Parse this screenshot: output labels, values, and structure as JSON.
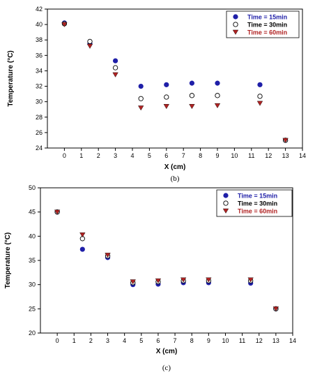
{
  "colors": {
    "s15": "#1f1fa8",
    "s30": "#000000",
    "s60": "#b02222",
    "axis": "#000000"
  },
  "chart_data": [
    {
      "type": "scatter",
      "caption": "(b)",
      "xlabel": "X (cm)",
      "ylabel": "Temperature (°C)",
      "xlim": [
        -1,
        14
      ],
      "ylim": [
        24,
        42
      ],
      "xticks": [
        0,
        1,
        2,
        3,
        4,
        5,
        6,
        7,
        8,
        9,
        10,
        11,
        12,
        13,
        14
      ],
      "yticks": [
        24,
        26,
        28,
        30,
        32,
        34,
        36,
        38,
        40,
        42
      ],
      "legend": "top-right",
      "series": [
        {
          "name": "Time = 15min",
          "marker": "filled-circle",
          "x": [
            0,
            1.5,
            3,
            4.5,
            6,
            7.5,
            9,
            11.5,
            13
          ],
          "y": [
            40.2,
            37.5,
            35.3,
            32.0,
            32.2,
            32.4,
            32.4,
            32.2,
            25.0
          ]
        },
        {
          "name": "Time = 30min",
          "marker": "open-circle",
          "x": [
            0,
            1.5,
            3,
            4.5,
            6,
            7.5,
            9,
            11.5,
            13
          ],
          "y": [
            40.1,
            37.8,
            34.4,
            30.4,
            30.6,
            30.8,
            30.8,
            30.7,
            25.0
          ]
        },
        {
          "name": "Time = 60min",
          "marker": "triangle-down",
          "x": [
            0,
            1.5,
            3,
            4.5,
            6,
            7.5,
            9,
            11.5,
            13
          ],
          "y": [
            40.0,
            37.2,
            33.5,
            29.2,
            29.4,
            29.4,
            29.5,
            29.8,
            25.0
          ]
        }
      ]
    },
    {
      "type": "scatter",
      "caption": "(c)",
      "xlabel": "X (cm)",
      "ylabel": "Temperature (°C)",
      "xlim": [
        -1,
        14
      ],
      "ylim": [
        20,
        50
      ],
      "xticks": [
        0,
        1,
        2,
        3,
        4,
        5,
        6,
        7,
        8,
        9,
        10,
        11,
        12,
        13,
        14
      ],
      "yticks": [
        20,
        25,
        30,
        35,
        40,
        45,
        50
      ],
      "legend": "top-right",
      "series": [
        {
          "name": "Time = 15min",
          "marker": "filled-circle",
          "x": [
            0,
            1.5,
            3,
            4.5,
            6,
            7.5,
            9,
            11.5,
            13
          ],
          "y": [
            45.0,
            37.3,
            35.6,
            30.0,
            30.1,
            30.4,
            30.4,
            30.3,
            25.0
          ]
        },
        {
          "name": "Time = 30min",
          "marker": "open-circle",
          "x": [
            0,
            1.5,
            3,
            4.5,
            6,
            7.5,
            9,
            11.5,
            13
          ],
          "y": [
            45.0,
            39.5,
            35.9,
            30.4,
            30.6,
            30.8,
            30.8,
            30.8,
            25.0
          ]
        },
        {
          "name": "Time = 60min",
          "marker": "triangle-down",
          "x": [
            0,
            1.5,
            3,
            4.5,
            6,
            7.5,
            9,
            11.5,
            13
          ],
          "y": [
            45.0,
            40.3,
            36.1,
            30.6,
            30.8,
            31.0,
            31.0,
            31.0,
            25.0
          ]
        }
      ]
    }
  ]
}
